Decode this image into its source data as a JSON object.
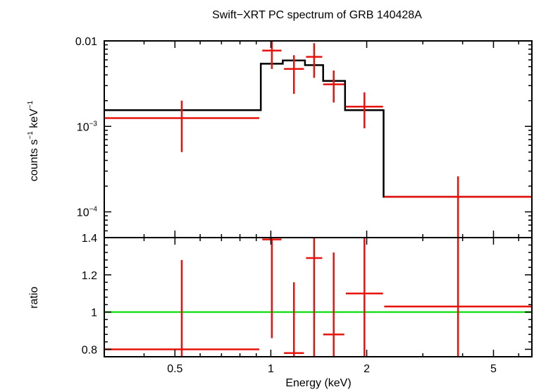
{
  "chart_data": {
    "type": "scatter",
    "title": "Swift−XRT PC spectrum of GRB 140428A",
    "xlabel": "Energy (keV)",
    "xscale": "log",
    "xlim": [
      0.3,
      6.6
    ],
    "x_ticks": [
      0.5,
      1,
      2,
      5
    ],
    "x_tick_labels": [
      "0.5",
      "1",
      "2",
      "5"
    ],
    "colors": {
      "data": "#e8120c",
      "model": "#000000",
      "unity": "#22e022",
      "axes": "#000000"
    },
    "panels": [
      {
        "name": "spectrum",
        "ylabel_parts": {
          "counts": "counts s",
          "exp1": "−1",
          "kev": " keV",
          "exp2": "−1"
        },
        "yscale": "log",
        "ylim": [
          5e-05,
          0.01
        ],
        "y_tick_labels": [
          {
            "value": 0.01,
            "base": "0.01",
            "exp": ""
          },
          {
            "value": 0.001,
            "base": "10",
            "exp": "−3"
          },
          {
            "value": 0.0001,
            "base": "10",
            "exp": "−4"
          }
        ],
        "series": [
          {
            "kind": "data",
            "points": [
              {
                "xlo": 0.3,
                "xhi": 0.92,
                "y": 0.00125,
                "ylo": 0.0005,
                "yhi": 0.002
              },
              {
                "xlo": 0.94,
                "xhi": 1.08,
                "y": 0.0077,
                "ylo": 0.0047,
                "yhi": 0.0104
              },
              {
                "xlo": 1.1,
                "xhi": 1.27,
                "y": 0.0047,
                "ylo": 0.0024,
                "yhi": 0.0068
              },
              {
                "xlo": 1.29,
                "xhi": 1.45,
                "y": 0.0065,
                "ylo": 0.0037,
                "yhi": 0.0094
              },
              {
                "xlo": 1.46,
                "xhi": 1.7,
                "y": 0.0031,
                "ylo": 0.0019,
                "yhi": 0.0045
              },
              {
                "xlo": 1.72,
                "xhi": 2.25,
                "y": 0.0017,
                "ylo": 0.00095,
                "yhi": 0.0025
              },
              {
                "xlo": 2.27,
                "xhi": 6.6,
                "y": 0.00015,
                "ylo": 5e-05,
                "yhi": 0.00026
              }
            ]
          },
          {
            "kind": "model",
            "steps": [
              {
                "xlo": 0.3,
                "xhi": 0.93,
                "y": 0.00155
              },
              {
                "xlo": 0.93,
                "xhi": 1.09,
                "y": 0.0054
              },
              {
                "xlo": 1.09,
                "xhi": 1.28,
                "y": 0.0059
              },
              {
                "xlo": 1.28,
                "xhi": 1.46,
                "y": 0.0052
              },
              {
                "xlo": 1.46,
                "xhi": 1.71,
                "y": 0.0034
              },
              {
                "xlo": 1.71,
                "xhi": 2.26,
                "y": 0.00155
              },
              {
                "xlo": 2.26,
                "xhi": 6.6,
                "y": 0.00015
              }
            ]
          }
        ]
      },
      {
        "name": "ratio",
        "ylabel": "ratio",
        "yscale": "linear",
        "ylim": [
          0.76,
          1.4
        ],
        "y_ticks": [
          0.8,
          1.0,
          1.2,
          1.4
        ],
        "y_tick_labels": [
          "0.8",
          "1",
          "1.2",
          "1.4"
        ],
        "unity": 1.0,
        "series": [
          {
            "kind": "data",
            "points": [
              {
                "xlo": 0.3,
                "xhi": 0.92,
                "y": 0.8,
                "ylo": 0.76,
                "yhi": 1.28
              },
              {
                "xlo": 0.94,
                "xhi": 1.08,
                "y": 1.39,
                "ylo": 0.86,
                "yhi": 1.4
              },
              {
                "xlo": 1.1,
                "xhi": 1.27,
                "y": 0.78,
                "ylo": 0.76,
                "yhi": 1.16
              },
              {
                "xlo": 1.29,
                "xhi": 1.45,
                "y": 1.29,
                "ylo": 0.76,
                "yhi": 1.4
              },
              {
                "xlo": 1.46,
                "xhi": 1.7,
                "y": 0.88,
                "ylo": 0.76,
                "yhi": 1.32
              },
              {
                "xlo": 1.72,
                "xhi": 2.25,
                "y": 1.1,
                "ylo": 0.76,
                "yhi": 1.4
              },
              {
                "xlo": 2.27,
                "xhi": 6.6,
                "y": 1.03,
                "ylo": 0.76,
                "yhi": 1.4
              }
            ]
          }
        ]
      }
    ]
  }
}
